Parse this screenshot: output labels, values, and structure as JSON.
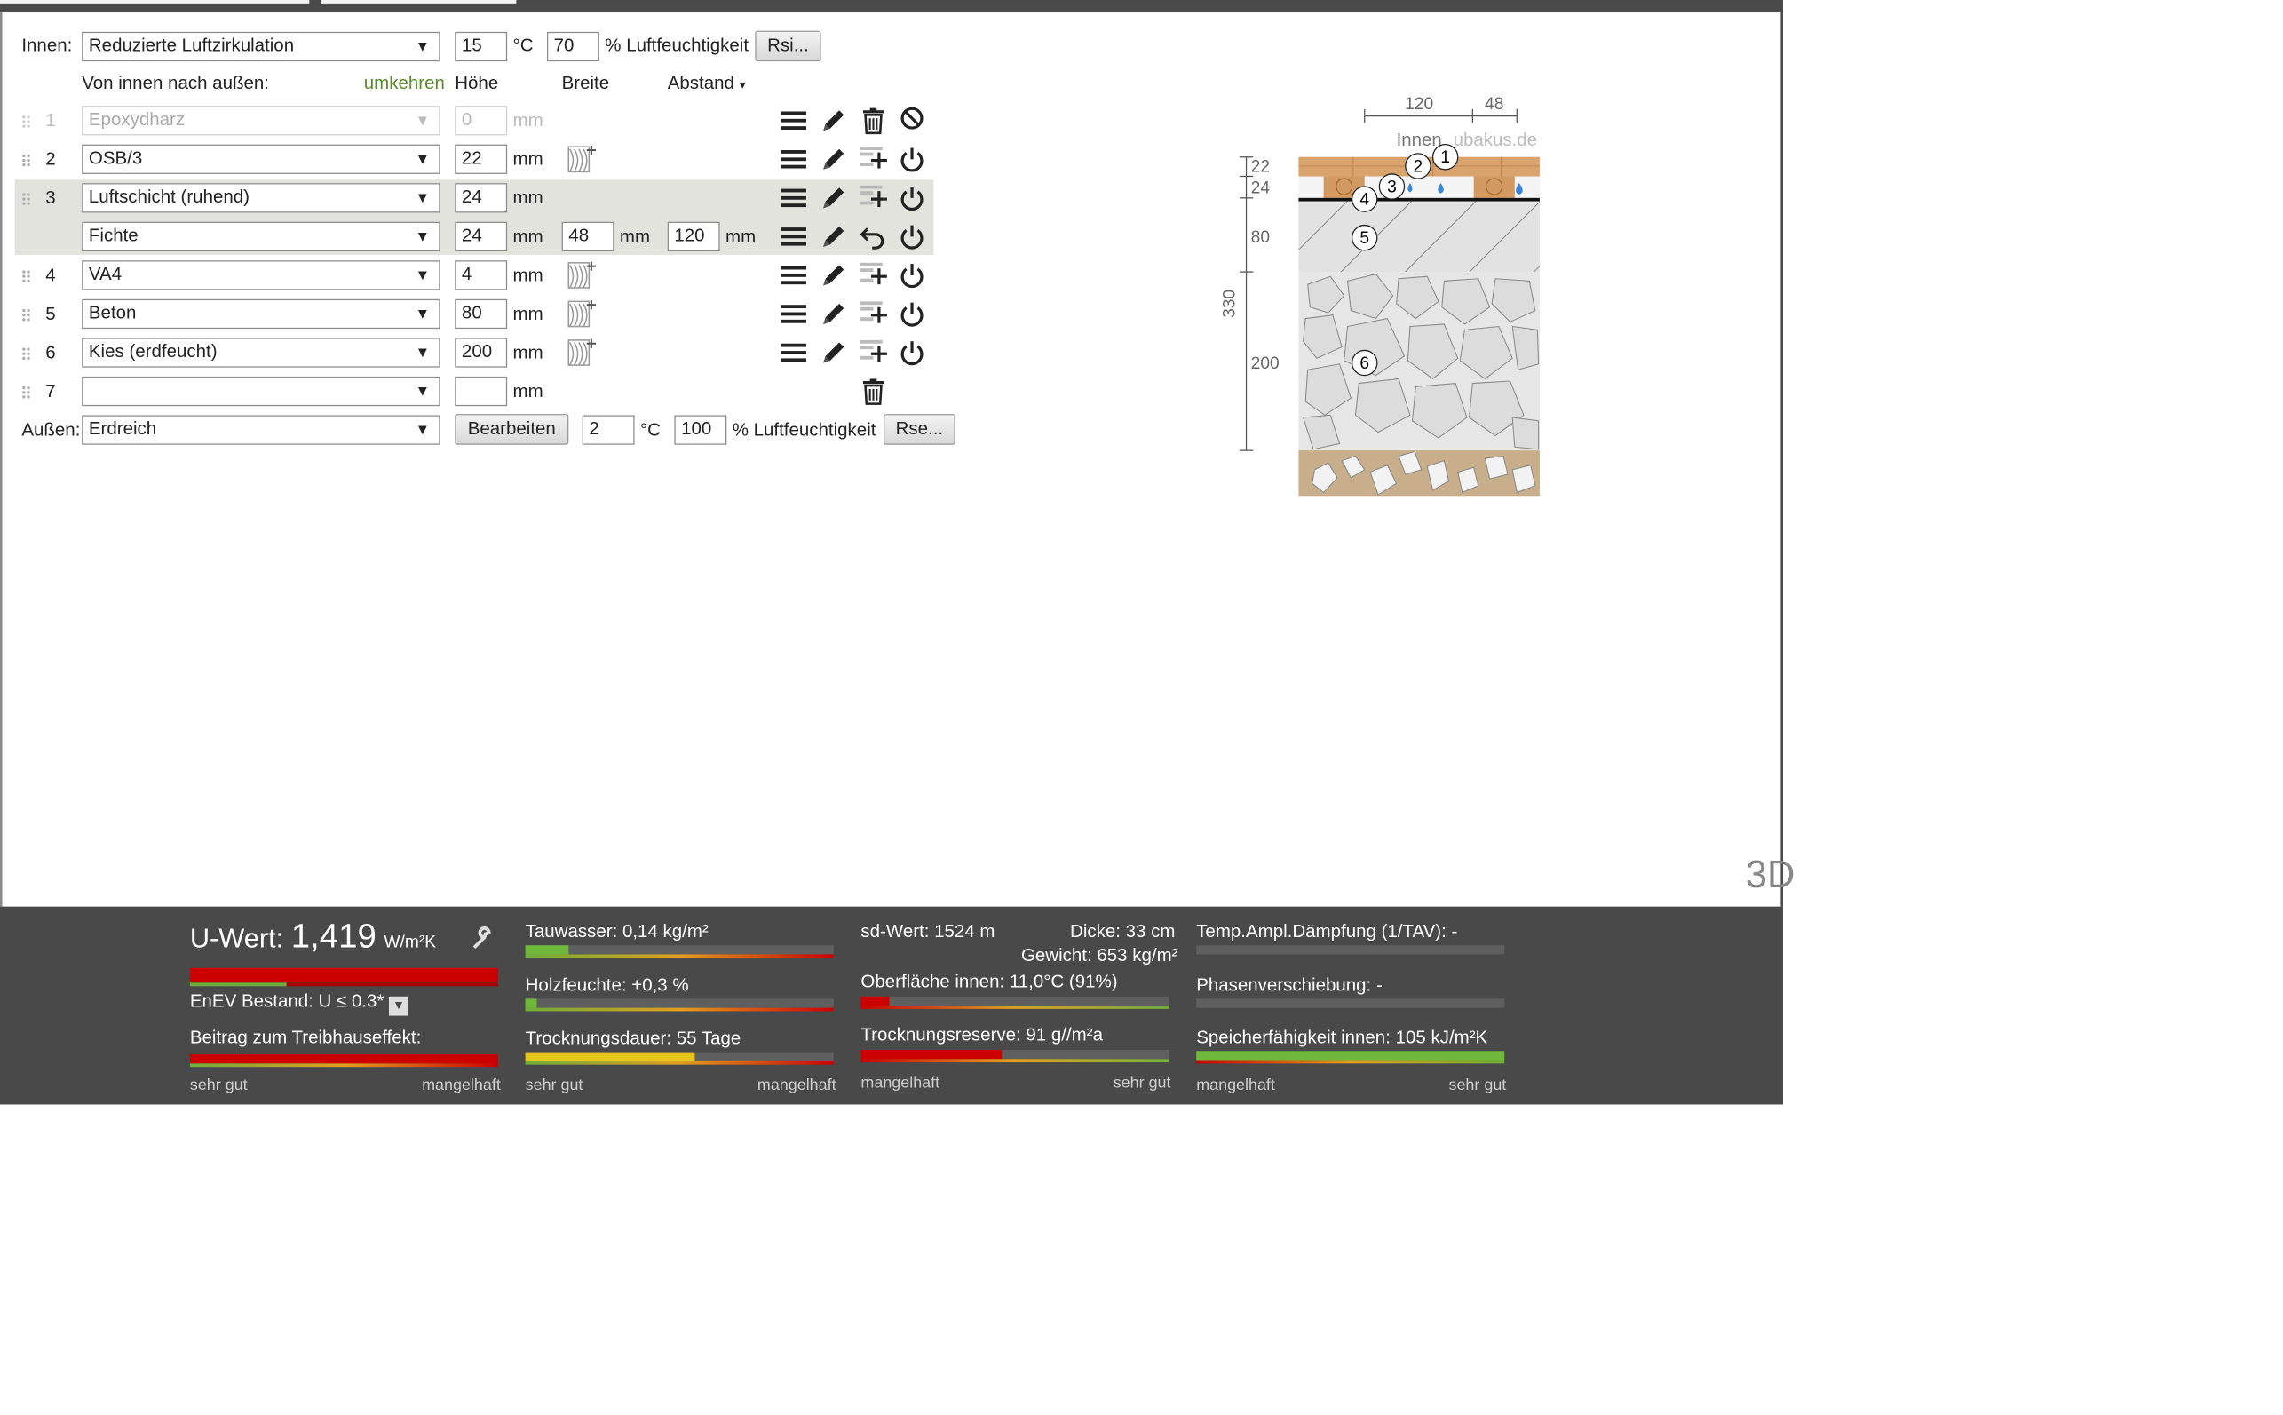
{
  "inside": {
    "label": "Innen:",
    "climate": "Reduzierte Luftzirkulation",
    "temperature": "15",
    "temp_unit": "°C",
    "humidity": "70",
    "humidity_unit": "% Luftfeuchtigkeit",
    "rsi_button": "Rsi..."
  },
  "header": {
    "direction": "Von innen nach außen:",
    "reverse_link": "umkehren",
    "col_height": "Höhe",
    "col_width": "Breite",
    "col_distance": "Abstand",
    "col_distance_arrow": "▾"
  },
  "layers": [
    {
      "num": "1",
      "material": "Epoxydharz",
      "thickness": "0",
      "unit": "mm",
      "disabled": true
    },
    {
      "num": "2",
      "material": "OSB/3",
      "thickness": "22",
      "unit": "mm"
    },
    {
      "num": "3",
      "material": "Luftschicht (ruhend)",
      "thickness": "24",
      "unit": "mm"
    },
    {
      "num": "",
      "material": "Fichte",
      "thickness": "24",
      "unit": "mm",
      "width": "48",
      "width_unit": "mm",
      "distance": "120",
      "distance_unit": "mm"
    },
    {
      "num": "4",
      "material": "VA4",
      "thickness": "4",
      "unit": "mm"
    },
    {
      "num": "5",
      "material": "Beton",
      "thickness": "80",
      "unit": "mm"
    },
    {
      "num": "6",
      "material": "Kies (erdfeucht)",
      "thickness": "200",
      "unit": "mm"
    },
    {
      "num": "7",
      "material": "",
      "thickness": "",
      "unit": "mm"
    }
  ],
  "outside": {
    "label": "Außen:",
    "climate": "Erdreich",
    "edit_button": "Bearbeiten",
    "temperature": "2",
    "temp_unit": "°C",
    "humidity": "100",
    "humidity_unit": "% Luftfeuchtigkeit",
    "rse_button": "Rse..."
  },
  "diagram": {
    "dim_top_left": "120",
    "dim_top_right": "48",
    "label_inside": "Innen",
    "watermark": "ubakus.de",
    "dims": [
      "22",
      "24",
      "80",
      "200"
    ],
    "total": "330",
    "layer_markers": [
      "1",
      "2",
      "3",
      "4",
      "5",
      "6"
    ]
  },
  "corner_label": "3D",
  "results": {
    "uwert_label": "U-Wert:",
    "uwert_value": "1,419",
    "uwert_unit": "W/m²K",
    "enev": "EnEV Bestand: U ≤ 0.3*",
    "treibhaus": "Beitrag zum Treibhauseffekt:",
    "tauwasser": "Tauwasser: 0,14 kg/m²",
    "holzfeuchte": "Holzfeuchte: +0,3 %",
    "trocknungsdauer": "Trocknungsdauer: 55 Tage",
    "sdwert": "sd-Wert: 1524 m",
    "dicke": "Dicke: 33 cm",
    "gewicht": "Gewicht: 653 kg/m²",
    "oberflaeche": "Oberfläche innen: 11,0°C (91%)",
    "trocknungsreserve": "Trocknungsreserve: 91 g//m²a",
    "tav": "Temp.Ampl.Dämpfung (1/TAV): -",
    "phase": "Phasenverschiebung: -",
    "speicher": "Speicherfähigkeit innen: 105 kJ/m²K",
    "scale_good": "sehr gut",
    "scale_bad": "mangelhaft"
  },
  "colors": {
    "bar_red": "#cc0000",
    "bar_green": "#6fb83b",
    "bar_yellow": "#e6c619",
    "panel_bg": "#494949",
    "highlight_row": "#e3e3de",
    "link_green": "#5a8a2a"
  }
}
